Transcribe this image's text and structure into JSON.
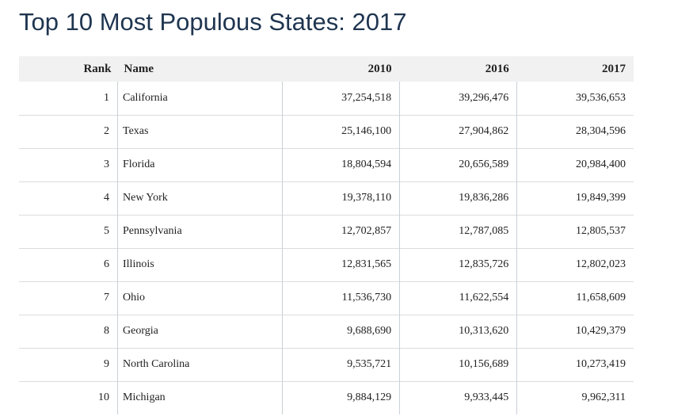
{
  "title": "Top 10 Most Populous States: 2017",
  "table": {
    "headers": {
      "rank": "Rank",
      "name": "Name",
      "y2010": "2010",
      "y2016": "2016",
      "y2017": "2017"
    },
    "rows": [
      {
        "rank": "1",
        "name": "California",
        "y2010": "37,254,518",
        "y2016": "39,296,476",
        "y2017": "39,536,653"
      },
      {
        "rank": "2",
        "name": "Texas",
        "y2010": "25,146,100",
        "y2016": "27,904,862",
        "y2017": "28,304,596"
      },
      {
        "rank": "3",
        "name": "Florida",
        "y2010": "18,804,594",
        "y2016": "20,656,589",
        "y2017": "20,984,400"
      },
      {
        "rank": "4",
        "name": "New York",
        "y2010": "19,378,110",
        "y2016": "19,836,286",
        "y2017": "19,849,399"
      },
      {
        "rank": "5",
        "name": "Pennsylvania",
        "y2010": "12,702,857",
        "y2016": "12,787,085",
        "y2017": "12,805,537"
      },
      {
        "rank": "6",
        "name": "Illinois",
        "y2010": "12,831,565",
        "y2016": "12,835,726",
        "y2017": "12,802,023"
      },
      {
        "rank": "7",
        "name": "Ohio",
        "y2010": "11,536,730",
        "y2016": "11,622,554",
        "y2017": "11,658,609"
      },
      {
        "rank": "8",
        "name": "Georgia",
        "y2010": "9,688,690",
        "y2016": "10,313,620",
        "y2017": "10,429,379"
      },
      {
        "rank": "9",
        "name": "North Carolina",
        "y2010": "9,535,721",
        "y2016": "10,156,689",
        "y2017": "10,273,419"
      },
      {
        "rank": "10",
        "name": "Michigan",
        "y2010": "9,884,129",
        "y2016": "9,933,445",
        "y2017": "9,962,311"
      }
    ]
  }
}
